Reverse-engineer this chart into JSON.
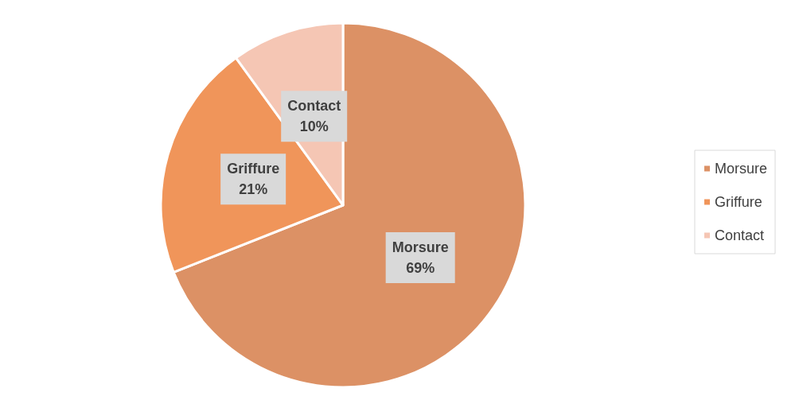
{
  "chart_data": {
    "type": "pie",
    "categories": [
      "Morsure",
      "Griffure",
      "Contact"
    ],
    "values": [
      69,
      21,
      10
    ],
    "colors": [
      "#dc9165",
      "#f0955a",
      "#f5c6b4"
    ],
    "value_labels": [
      "69%",
      "21%",
      "10%"
    ],
    "legend": "right"
  }
}
